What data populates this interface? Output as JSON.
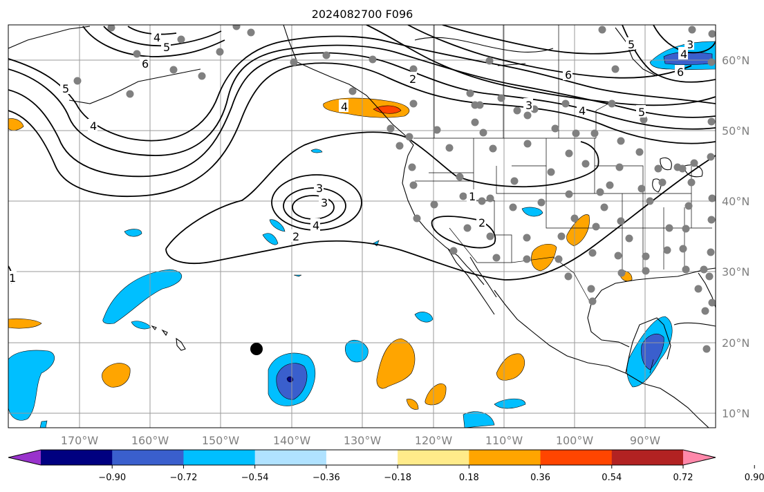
{
  "title": "2024082700 F096",
  "lon_labels": [
    "170°W",
    "160°W",
    "150°W",
    "140°W",
    "130°W",
    "120°W",
    "110°W",
    "100°W",
    "90°W"
  ],
  "lat_labels": [
    "60°N",
    "50°N",
    "40°N",
    "30°N",
    "20°N",
    "10°N"
  ],
  "colorbar": {
    "tick_labels": [
      "−0.90",
      "−0.72",
      "−0.54",
      "−0.36",
      "−0.18",
      "0.18",
      "0.36",
      "0.54",
      "0.72",
      "0.90"
    ],
    "colors": [
      "#9933cc",
      "#000080",
      "#3a5fcd",
      "#00bfff",
      "#b0e2ff",
      "#ffffff",
      "#ffeb8a",
      "#ffa500",
      "#ff4500",
      "#b22222",
      "#ff88aa"
    ]
  },
  "contour_labels": [
    {
      "id": "c4-nw",
      "text": "4"
    },
    {
      "id": "c5-nw",
      "text": "5"
    },
    {
      "id": "c6-nw",
      "text": "6"
    },
    {
      "id": "c5-w",
      "text": "5"
    },
    {
      "id": "c4-w",
      "text": "4"
    },
    {
      "id": "c3-low",
      "text": "3"
    },
    {
      "id": "c3-low2",
      "text": "3"
    },
    {
      "id": "c4-low",
      "text": "4"
    },
    {
      "id": "c2-low",
      "text": "2"
    },
    {
      "id": "c1-w",
      "text": "1"
    },
    {
      "id": "c4-ak",
      "text": "4"
    },
    {
      "id": "c2-ak",
      "text": "2"
    },
    {
      "id": "c1-us",
      "text": "1"
    },
    {
      "id": "c2-sw",
      "text": "2"
    },
    {
      "id": "c6-can",
      "text": "6"
    },
    {
      "id": "c3-can",
      "text": "3"
    },
    {
      "id": "c4-can",
      "text": "4"
    },
    {
      "id": "c5-can",
      "text": "5"
    },
    {
      "id": "c3-ne",
      "text": "3"
    },
    {
      "id": "c4-ne",
      "text": "4"
    },
    {
      "id": "c5-ne",
      "text": "5"
    },
    {
      "id": "c6-ne",
      "text": "6"
    }
  ],
  "colors": {
    "orange": "#ffa500",
    "red_orange": "#ff4500",
    "light_blue": "#00bfff",
    "blue": "#3a5fcd",
    "navy": "#000080",
    "station": "#808080",
    "grid": "#9a9a9a"
  }
}
